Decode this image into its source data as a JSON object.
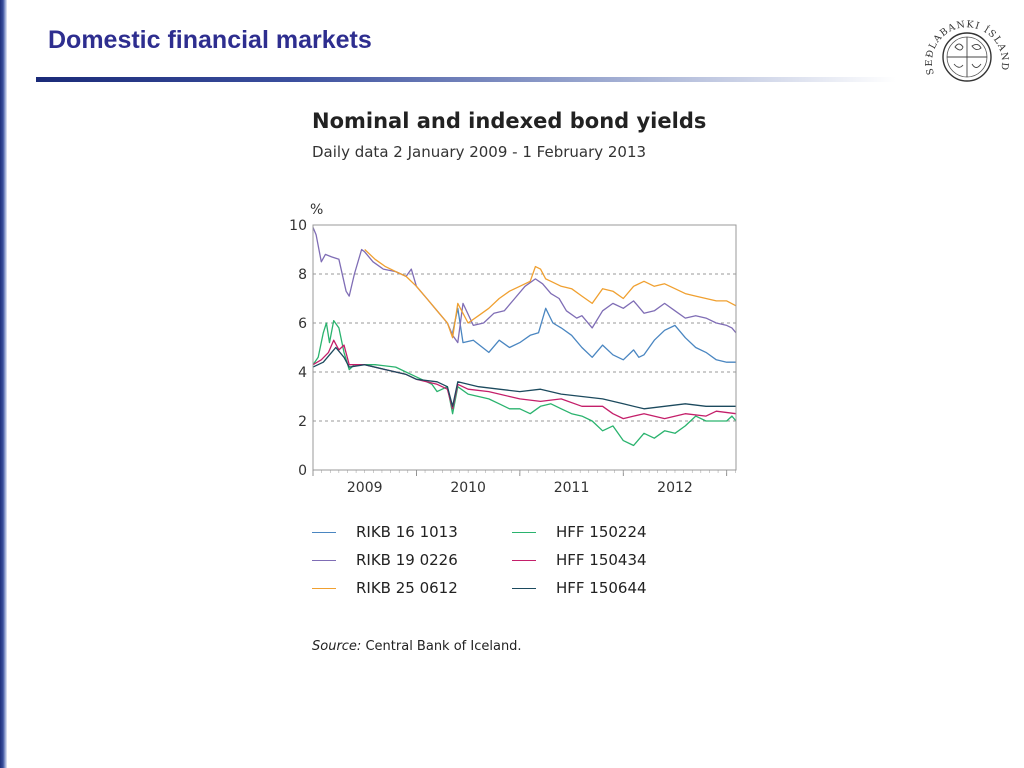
{
  "slide": {
    "title": "Domestic financial markets",
    "logo_text": "SEÐLABANKI ÍSLANDS"
  },
  "chart_data": {
    "type": "line",
    "title": "Nominal and indexed bond yields",
    "subtitle": "Daily data 2 January 2009 - 1 February 2013",
    "ylabel": "%",
    "ylim": [
      0,
      10
    ],
    "yticks": [
      0,
      2,
      4,
      6,
      8,
      10
    ],
    "xlim": [
      2009.0,
      2013.09
    ],
    "xticks": [
      2009,
      2010,
      2011,
      2012,
      2013
    ],
    "xtick_labels": [
      {
        "label": "2009",
        "at": 2009.5
      },
      {
        "label": "2010",
        "at": 2010.5
      },
      {
        "label": "2011",
        "at": 2011.5
      },
      {
        "label": "2012",
        "at": 2012.5
      }
    ],
    "grid": {
      "horizontal": true,
      "dashed": true,
      "lines": [
        2,
        4,
        6,
        8
      ]
    },
    "legend_placement": "bottom",
    "series": [
      {
        "name": "RIKB 16 1013",
        "color": "#4a86c1",
        "x": [
          2010.35,
          2010.4,
          2010.45,
          2010.55,
          2010.7,
          2010.8,
          2010.9,
          2011.0,
          2011.1,
          2011.18,
          2011.25,
          2011.32,
          2011.4,
          2011.5,
          2011.6,
          2011.7,
          2011.8,
          2011.9,
          2012.0,
          2012.1,
          2012.15,
          2012.2,
          2012.3,
          2012.4,
          2012.5,
          2012.6,
          2012.7,
          2012.8,
          2012.9,
          2013.0,
          2013.09
        ],
        "y": [
          5.6,
          6.6,
          5.2,
          5.3,
          4.8,
          5.3,
          5.0,
          5.2,
          5.5,
          5.6,
          6.6,
          6.0,
          5.8,
          5.5,
          5.0,
          4.6,
          5.1,
          4.7,
          4.5,
          4.9,
          4.6,
          4.7,
          5.3,
          5.7,
          5.9,
          5.4,
          5.0,
          4.8,
          4.5,
          4.4,
          4.4
        ]
      },
      {
        "name": "RIKB 19 0226",
        "color": "#7f6db5",
        "x": [
          2009.0,
          2009.03,
          2009.08,
          2009.12,
          2009.18,
          2009.25,
          2009.32,
          2009.35,
          2009.4,
          2009.47,
          2009.5,
          2009.58,
          2009.68,
          2009.8,
          2009.9,
          2009.95,
          2010.0,
          2010.1,
          2010.2,
          2010.3,
          2010.35,
          2010.4,
          2010.45,
          2010.55,
          2010.65,
          2010.75,
          2010.85,
          2010.95,
          2011.05,
          2011.15,
          2011.22,
          2011.3,
          2011.38,
          2011.45,
          2011.55,
          2011.6,
          2011.7,
          2011.8,
          2011.9,
          2012.0,
          2012.1,
          2012.2,
          2012.3,
          2012.4,
          2012.5,
          2012.6,
          2012.7,
          2012.8,
          2012.9,
          2013.0,
          2013.05,
          2013.09
        ],
        "y": [
          9.9,
          9.6,
          8.5,
          8.8,
          8.7,
          8.6,
          7.3,
          7.1,
          8.0,
          9.0,
          8.9,
          8.5,
          8.2,
          8.1,
          7.9,
          8.2,
          7.5,
          7.0,
          6.5,
          6.0,
          5.5,
          5.2,
          6.8,
          5.9,
          6.0,
          6.4,
          6.5,
          7.0,
          7.5,
          7.8,
          7.6,
          7.2,
          7.0,
          6.5,
          6.2,
          6.3,
          5.8,
          6.5,
          6.8,
          6.6,
          6.9,
          6.4,
          6.5,
          6.8,
          6.5,
          6.2,
          6.3,
          6.2,
          6.0,
          5.9,
          5.8,
          5.6
        ]
      },
      {
        "name": "RIKB 25 0612",
        "color": "#f0a030",
        "x": [
          2009.5,
          2009.6,
          2009.7,
          2009.8,
          2009.9,
          2010.0,
          2010.1,
          2010.2,
          2010.3,
          2010.35,
          2010.4,
          2010.5,
          2010.6,
          2010.7,
          2010.8,
          2010.9,
          2011.0,
          2011.1,
          2011.15,
          2011.2,
          2011.25,
          2011.3,
          2011.4,
          2011.5,
          2011.6,
          2011.7,
          2011.8,
          2011.9,
          2012.0,
          2012.1,
          2012.2,
          2012.3,
          2012.4,
          2012.5,
          2012.6,
          2012.7,
          2012.8,
          2012.9,
          2013.0,
          2013.09
        ],
        "y": [
          9.0,
          8.6,
          8.3,
          8.1,
          7.9,
          7.5,
          7.0,
          6.5,
          6.0,
          5.4,
          6.8,
          6.0,
          6.3,
          6.6,
          7.0,
          7.3,
          7.5,
          7.7,
          8.3,
          8.2,
          7.8,
          7.7,
          7.5,
          7.4,
          7.1,
          6.8,
          7.4,
          7.3,
          7.0,
          7.5,
          7.7,
          7.5,
          7.6,
          7.4,
          7.2,
          7.1,
          7.0,
          6.9,
          6.9,
          6.7
        ]
      },
      {
        "name": "HFF 150224",
        "color": "#2ab36e",
        "x": [
          2009.0,
          2009.05,
          2009.1,
          2009.13,
          2009.16,
          2009.2,
          2009.25,
          2009.3,
          2009.35,
          2009.4,
          2009.6,
          2009.8,
          2010.0,
          2010.1,
          2010.15,
          2010.2,
          2010.3,
          2010.35,
          2010.4,
          2010.5,
          2010.6,
          2010.7,
          2010.8,
          2010.9,
          2011.0,
          2011.1,
          2011.2,
          2011.3,
          2011.4,
          2011.5,
          2011.6,
          2011.7,
          2011.8,
          2011.9,
          2012.0,
          2012.1,
          2012.2,
          2012.3,
          2012.4,
          2012.5,
          2012.6,
          2012.7,
          2012.8,
          2012.9,
          2013.0,
          2013.05,
          2013.09
        ],
        "y": [
          4.3,
          4.6,
          5.6,
          6.0,
          5.2,
          6.1,
          5.8,
          4.8,
          4.1,
          4.3,
          4.3,
          4.2,
          3.8,
          3.6,
          3.5,
          3.2,
          3.4,
          2.3,
          3.4,
          3.1,
          3.0,
          2.9,
          2.7,
          2.5,
          2.5,
          2.3,
          2.6,
          2.7,
          2.5,
          2.3,
          2.2,
          2.0,
          1.6,
          1.8,
          1.2,
          1.0,
          1.5,
          1.3,
          1.6,
          1.5,
          1.8,
          2.2,
          2.0,
          2.0,
          2.0,
          2.2,
          2.0
        ]
      },
      {
        "name": "HFF 150434",
        "color": "#c41f6a",
        "x": [
          2009.0,
          2009.08,
          2009.15,
          2009.2,
          2009.25,
          2009.3,
          2009.35,
          2009.5,
          2009.7,
          2009.9,
          2010.0,
          2010.2,
          2010.3,
          2010.35,
          2010.4,
          2010.5,
          2010.7,
          2010.9,
          2011.0,
          2011.2,
          2011.4,
          2011.6,
          2011.8,
          2011.9,
          2012.0,
          2012.1,
          2012.2,
          2012.4,
          2012.6,
          2012.8,
          2012.9,
          2013.09
        ],
        "y": [
          4.3,
          4.5,
          4.8,
          5.3,
          4.9,
          5.1,
          4.3,
          4.3,
          4.1,
          3.9,
          3.7,
          3.5,
          3.3,
          2.5,
          3.5,
          3.3,
          3.2,
          3.0,
          2.9,
          2.8,
          2.9,
          2.6,
          2.6,
          2.3,
          2.1,
          2.2,
          2.3,
          2.1,
          2.3,
          2.2,
          2.4,
          2.3
        ]
      },
      {
        "name": "HFF 150644",
        "color": "#1c4a5e",
        "x": [
          2009.0,
          2009.1,
          2009.18,
          2009.22,
          2009.3,
          2009.35,
          2009.5,
          2009.7,
          2009.9,
          2010.0,
          2010.2,
          2010.3,
          2010.35,
          2010.4,
          2010.6,
          2010.8,
          2011.0,
          2011.2,
          2011.4,
          2011.6,
          2011.8,
          2012.0,
          2012.2,
          2012.4,
          2012.6,
          2012.8,
          2013.0,
          2013.09
        ],
        "y": [
          4.2,
          4.4,
          4.8,
          5.0,
          4.6,
          4.2,
          4.3,
          4.1,
          3.9,
          3.7,
          3.6,
          3.4,
          2.6,
          3.6,
          3.4,
          3.3,
          3.2,
          3.3,
          3.1,
          3.0,
          2.9,
          2.7,
          2.5,
          2.6,
          2.7,
          2.6,
          2.6,
          2.6
        ]
      }
    ]
  },
  "source": {
    "label": "Source:",
    "text": "Central Bank of Iceland."
  }
}
